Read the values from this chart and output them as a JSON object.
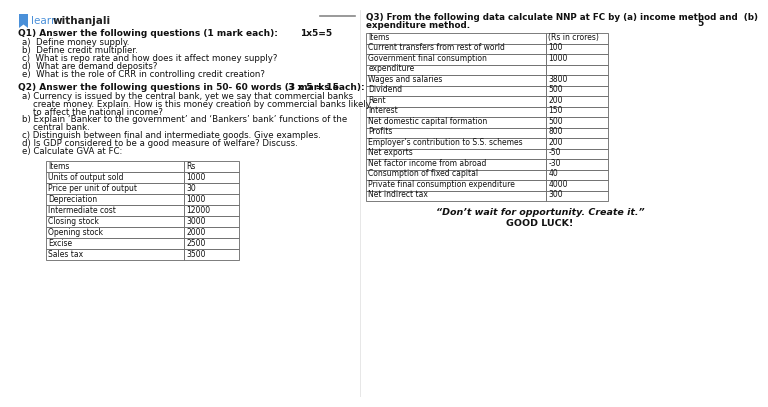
{
  "bg_color": "#ffffff",
  "logo_color": "#4a90d9",
  "q1_heading": "Q1) Answer the following questions (1 mark each):",
  "q1_marks": "1x5=5",
  "q1_items": [
    "a)  Define money supply.",
    "b)  Define credit multiplier.",
    "c)  What is repo rate and how does it affect money supply?",
    "d)  What are demand deposits?",
    "e)  What is the role of CRR in controlling credit creation?"
  ],
  "q2_heading": "Q2) Answer the following questions in 50- 60 words (3 marks each):",
  "q2_marks": "3 x 5 = 15",
  "q2_items": [
    [
      "a)",
      " Currency is issued by the central bank, yet we say that commercial banks",
      "    create money. Explain. How is this money creation by commercial banks likely",
      "    to affect the national income?"
    ],
    [
      "b)",
      " Explain ‘Banker to the government’ and ‘Bankers’ bank’ functions of the",
      "    central bank."
    ],
    [
      "c)",
      " Distinguish between final and intermediate goods. Give examples."
    ],
    [
      "d)",
      " Is GDP considered to be a good measure of welfare? Discuss."
    ],
    [
      "e)",
      " Calculate GVA at FC:"
    ]
  ],
  "gva_table_headers": [
    "Items",
    "Rs"
  ],
  "gva_table_rows": [
    [
      "Units of output sold",
      "1000"
    ],
    [
      "Price per unit of output",
      "30"
    ],
    [
      "Depreciation",
      "1000"
    ],
    [
      "Intermediate cost",
      "12000"
    ],
    [
      "Closing stock",
      "3000"
    ],
    [
      "Opening stock",
      "2000"
    ],
    [
      "Excise",
      "2500"
    ],
    [
      "Sales tax",
      "3500"
    ]
  ],
  "q3_heading": "Q3) From the following data calculate NNP at FC by (a) income method and  (b)",
  "q3_heading2": "expenditure method.",
  "q3_marks": "5",
  "q3_table_headers": [
    "Items",
    "(Rs in crores)"
  ],
  "q3_table_rows": [
    [
      "Current transfers from rest of world",
      "100"
    ],
    [
      "Government final consumption",
      "1000"
    ],
    [
      "expenditure",
      ""
    ],
    [
      "Wages and salaries",
      "3800"
    ],
    [
      "Dividend",
      "500"
    ],
    [
      "Rent",
      "200"
    ],
    [
      "Interest",
      "150"
    ],
    [
      "Net domestic capital formation",
      "500"
    ],
    [
      "Profits",
      "800"
    ],
    [
      "Employer’s contribution to S.S. schemes",
      "200"
    ],
    [
      "Net exports",
      "-50"
    ],
    [
      "Net factor income from abroad",
      "-30"
    ],
    [
      "Consumption of fixed capital",
      "40"
    ],
    [
      "Private final consumption expenditure",
      "4000"
    ],
    [
      "Net indirect tax",
      "300"
    ]
  ],
  "quote": "“Don’t wait for opportunity. Create it.”",
  "good_luck": "GOOD LUCK!"
}
